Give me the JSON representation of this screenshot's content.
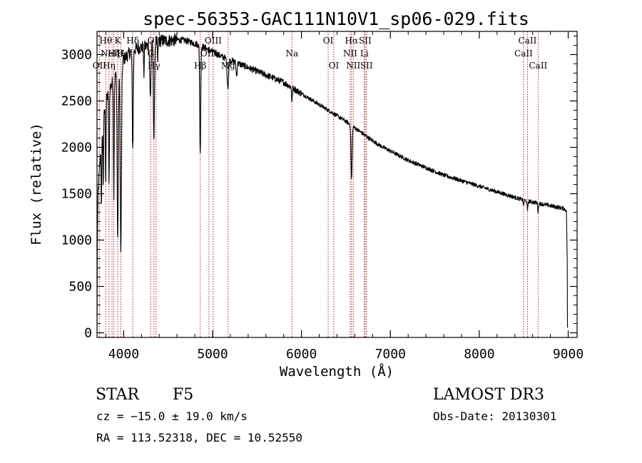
{
  "chart_data": {
    "type": "line",
    "title": "spec-56353-GAC111N10V1_sp06-029.fits",
    "xlabel": "Wavelength (Å)",
    "ylabel": "Flux (relative)",
    "xlim": [
      3700,
      9100
    ],
    "ylim": [
      -50,
      3250
    ],
    "xticks": [
      4000,
      5000,
      6000,
      7000,
      8000,
      9000
    ],
    "yticks": [
      0,
      500,
      1000,
      1500,
      2000,
      2500,
      3000
    ],
    "xtick_labels": [
      "4000",
      "5000",
      "6000",
      "7000",
      "8000",
      "9000"
    ],
    "ytick_labels": [
      "0",
      "500",
      "1000",
      "1500",
      "2000",
      "2500",
      "3000"
    ],
    "continuum": [
      [
        3700,
        0
      ],
      [
        3703,
        900
      ],
      [
        3712,
        1500
      ],
      [
        3730,
        1800
      ],
      [
        3760,
        2200
      ],
      [
        3800,
        2500
      ],
      [
        3850,
        2650
      ],
      [
        3900,
        2750
      ],
      [
        3950,
        2850
      ],
      [
        4000,
        2950
      ],
      [
        4050,
        3000
      ],
      [
        4100,
        3050
      ],
      [
        4200,
        3080
      ],
      [
        4300,
        3100
      ],
      [
        4400,
        3150
      ],
      [
        4500,
        3150
      ],
      [
        4600,
        3160
      ],
      [
        4700,
        3150
      ],
      [
        4800,
        3120
      ],
      [
        4900,
        3080
      ],
      [
        5000,
        3030
      ],
      [
        5100,
        2980
      ],
      [
        5200,
        2940
      ],
      [
        5300,
        2900
      ],
      [
        5400,
        2860
      ],
      [
        5500,
        2820
      ],
      [
        5600,
        2780
      ],
      [
        5700,
        2740
      ],
      [
        5800,
        2700
      ],
      [
        5900,
        2640
      ],
      [
        6000,
        2580
      ],
      [
        6100,
        2520
      ],
      [
        6200,
        2460
      ],
      [
        6300,
        2400
      ],
      [
        6400,
        2340
      ],
      [
        6500,
        2280
      ],
      [
        6600,
        2210
      ],
      [
        6700,
        2140
      ],
      [
        6800,
        2070
      ],
      [
        6900,
        2010
      ],
      [
        7000,
        1960
      ],
      [
        7100,
        1910
      ],
      [
        7200,
        1860
      ],
      [
        7300,
        1820
      ],
      [
        7400,
        1780
      ],
      [
        7500,
        1740
      ],
      [
        7600,
        1700
      ],
      [
        7700,
        1670
      ],
      [
        7800,
        1640
      ],
      [
        7900,
        1610
      ],
      [
        8000,
        1580
      ],
      [
        8100,
        1550
      ],
      [
        8200,
        1520
      ],
      [
        8300,
        1490
      ],
      [
        8400,
        1460
      ],
      [
        8500,
        1430
      ],
      [
        8600,
        1410
      ],
      [
        8700,
        1390
      ],
      [
        8800,
        1370
      ],
      [
        8900,
        1350
      ],
      [
        8950,
        1340
      ],
      [
        8980,
        1320
      ],
      [
        8990,
        700
      ],
      [
        9000,
        20
      ]
    ],
    "absorption_lines": [
      {
        "center": 3750,
        "depth": 0.35,
        "width": 5
      },
      {
        "center": 3770,
        "depth": 0.3,
        "width": 5
      },
      {
        "center": 3798,
        "depth": 0.35,
        "width": 5
      },
      {
        "center": 3835,
        "depth": 0.4,
        "width": 6
      },
      {
        "center": 3889,
        "depth": 0.45,
        "width": 6
      },
      {
        "center": 3933,
        "depth": 0.65,
        "width": 9
      },
      {
        "center": 3968,
        "depth": 0.7,
        "width": 10
      },
      {
        "center": 4102,
        "depth": 0.35,
        "width": 8
      },
      {
        "center": 4227,
        "depth": 0.1,
        "width": 5
      },
      {
        "center": 4300,
        "depth": 0.18,
        "width": 10
      },
      {
        "center": 4340,
        "depth": 0.33,
        "width": 9
      },
      {
        "center": 4383,
        "depth": 0.08,
        "width": 5
      },
      {
        "center": 4861,
        "depth": 0.38,
        "width": 8
      },
      {
        "center": 5172,
        "depth": 0.1,
        "width": 12
      },
      {
        "center": 5270,
        "depth": 0.05,
        "width": 8
      },
      {
        "center": 5893,
        "depth": 0.06,
        "width": 6
      },
      {
        "center": 6563,
        "depth": 0.26,
        "width": 9
      },
      {
        "center": 8498,
        "depth": 0.05,
        "width": 5
      },
      {
        "center": 8542,
        "depth": 0.08,
        "width": 6
      },
      {
        "center": 8662,
        "depth": 0.07,
        "width": 6
      }
    ],
    "noise_amplitude": 22,
    "marker_lines": [
      {
        "wavelength": 3727,
        "label": "OII",
        "row": 2
      },
      {
        "wavelength": 3798,
        "label": "Hθ",
        "row": 0
      },
      {
        "wavelength": 3835,
        "label": "Hη",
        "row": 2
      },
      {
        "wavelength": 3869,
        "label": "NeIII",
        "row": 1
      },
      {
        "wavelength": 3889,
        "label": "Hζ",
        "row": 1
      },
      {
        "wavelength": 3933,
        "label": "K",
        "row": 0
      },
      {
        "wavelength": 3968,
        "label": "H",
        "row": 1
      },
      {
        "wavelength": 4102,
        "label": "Hδ",
        "row": 0
      },
      {
        "wavelength": 4304,
        "label": "G",
        "row": 1
      },
      {
        "wavelength": 4340,
        "label": "Hγ",
        "row": 2
      },
      {
        "wavelength": 4363,
        "label": "OIII",
        "row": 0
      },
      {
        "wavelength": 4861,
        "label": "Hβ",
        "row": 2
      },
      {
        "wavelength": 4959,
        "label": "OIII",
        "row": 1
      },
      {
        "wavelength": 5007,
        "label": "OIII",
        "row": 0
      },
      {
        "wavelength": 5175,
        "label": "Mg",
        "row": 2
      },
      {
        "wavelength": 5893,
        "label": "Na",
        "row": 1
      },
      {
        "wavelength": 6300,
        "label": "OI",
        "row": 0
      },
      {
        "wavelength": 6364,
        "label": "OI",
        "row": 2
      },
      {
        "wavelength": 6548,
        "label": "NII",
        "row": 1
      },
      {
        "wavelength": 6563,
        "label": "Hα",
        "row": 0
      },
      {
        "wavelength": 6583,
        "label": "NII",
        "row": 2
      },
      {
        "wavelength": 6707,
        "label": "Li",
        "row": 1
      },
      {
        "wavelength": 6716,
        "label": "SII",
        "row": 0
      },
      {
        "wavelength": 6731,
        "label": "SII",
        "row": 2
      },
      {
        "wavelength": 8498,
        "label": "CaII",
        "row": 1
      },
      {
        "wavelength": 8542,
        "label": "CaII",
        "row": 0
      },
      {
        "wavelength": 8662,
        "label": "CaII",
        "row": 2
      }
    ]
  },
  "info": {
    "object_class": "STAR",
    "subclass": "F5",
    "survey": "LAMOST DR3",
    "redshift": "cz = −15.0 ± 19.0 km/s",
    "obs_date": "Obs-Date: 20130301",
    "coords": "RA = 113.52318, DEC =  10.52550"
  },
  "colors": {
    "spectrum": "#000000",
    "marker": "#b22222",
    "axis": "#000000",
    "background": "#ffffff"
  }
}
